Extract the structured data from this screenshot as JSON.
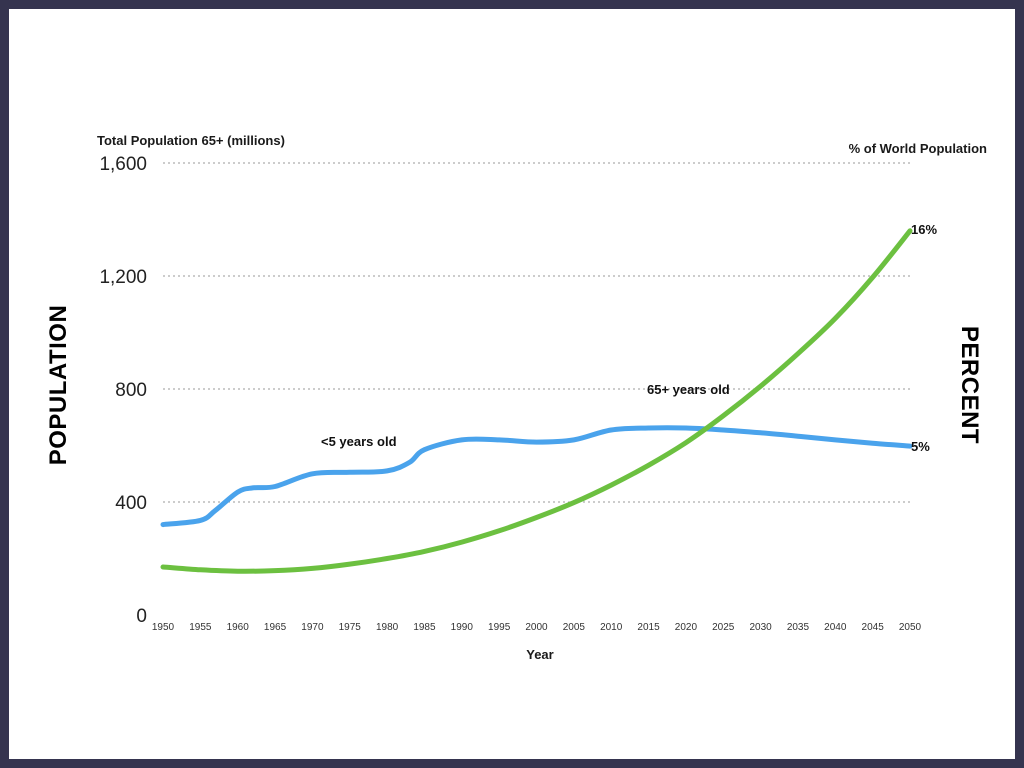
{
  "chart_data": {
    "type": "line",
    "left_axis_title": "Total Population 65+ (millions)",
    "right_axis_title": "% of World Population",
    "side_label_left": "POPULATION",
    "side_label_right": "PERCENT",
    "xlabel": "Year",
    "ylim": [
      0,
      1600
    ],
    "y_ticks": [
      "0",
      "400",
      "800",
      "1,200",
      "1,600"
    ],
    "y_tick_values": [
      0,
      400,
      800,
      1200,
      1600
    ],
    "x_ticks": [
      1950,
      1955,
      1960,
      1965,
      1970,
      1975,
      1980,
      1985,
      1990,
      1995,
      2000,
      2005,
      2010,
      2015,
      2020,
      2025,
      2030,
      2035,
      2040,
      2045,
      2050
    ],
    "xlim": [
      1950,
      2050
    ],
    "grid": true,
    "series": [
      {
        "name": "<5 years old",
        "color": "#4aa3ec",
        "end_label": "5%",
        "x": [
          1950,
          1955,
          1957,
          1960,
          1962,
          1965,
          1970,
          1975,
          1980,
          1983,
          1985,
          1990,
          1995,
          2000,
          2005,
          2010,
          2015,
          2020,
          2025,
          2030,
          2035,
          2040,
          2045,
          2050
        ],
        "y": [
          320,
          335,
          370,
          435,
          450,
          455,
          500,
          505,
          510,
          540,
          585,
          620,
          620,
          612,
          620,
          655,
          662,
          662,
          655,
          645,
          633,
          620,
          608,
          598
        ]
      },
      {
        "name": "65+ years old",
        "color": "#6cc040",
        "end_label": "16%",
        "x": [
          1950,
          1955,
          1960,
          1965,
          1970,
          1975,
          1980,
          1985,
          1990,
          1995,
          2000,
          2005,
          2010,
          2015,
          2020,
          2025,
          2030,
          2035,
          2040,
          2045,
          2050
        ],
        "y": [
          170,
          160,
          155,
          157,
          165,
          180,
          200,
          225,
          258,
          298,
          345,
          398,
          460,
          530,
          610,
          705,
          810,
          925,
          1050,
          1195,
          1360
        ]
      }
    ]
  }
}
